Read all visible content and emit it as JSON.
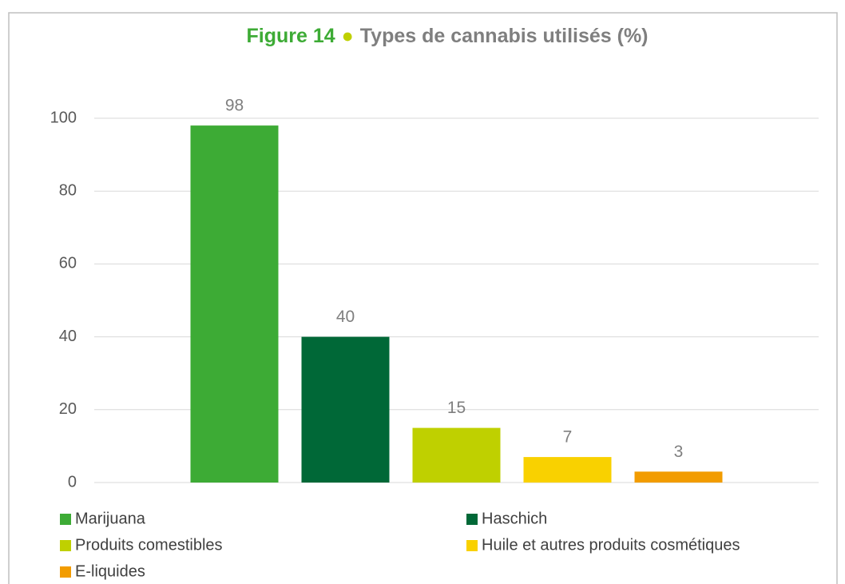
{
  "chart_data": {
    "type": "bar",
    "figure_label": "Figure 14",
    "title": "Types de cannabis utilisés (%)",
    "categories": [
      null
    ],
    "series": [
      {
        "name": "Marijuana",
        "color": "#3dab35",
        "values": [
          98
        ]
      },
      {
        "name": "Haschich",
        "color": "#006837",
        "values": [
          40
        ]
      },
      {
        "name": "Produits comestibles",
        "color": "#bfd000",
        "values": [
          15
        ]
      },
      {
        "name": "Huile et autres produits cosmétiques",
        "color": "#f9d100",
        "values": [
          7
        ]
      },
      {
        "name": "E-liquides",
        "color": "#f29c00",
        "values": [
          3
        ]
      }
    ],
    "ylim": [
      0,
      100
    ],
    "yticks": [
      0,
      20,
      40,
      60,
      80,
      100
    ],
    "grid": true,
    "legend": "bottom"
  }
}
